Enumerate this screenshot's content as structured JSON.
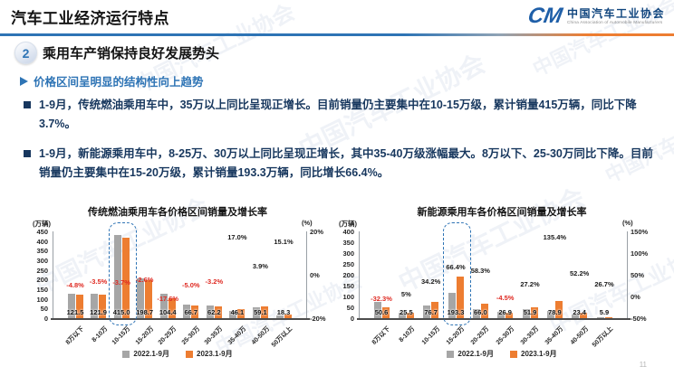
{
  "header": {
    "title": "汽车工业经济运行特点",
    "logo": {
      "mark": "CM",
      "org_name": "中国汽车工业协会",
      "org_subtitle": "China Association of Automobile Manufacturers"
    }
  },
  "section": {
    "number": "2",
    "title": "乘用车产销保持良好发展势头",
    "subtitle": "价格区间呈明显的结构性向上趋势"
  },
  "bullets": [
    {
      "text": "1-9月，传统燃油乘用车中，35万以上同比呈现正增长。目前销量仍主要集中在10-15万级，累计销量415万辆，同比下降3.7%。"
    },
    {
      "text": "1-9月，新能源乘用车中，8-25万、30万以上同比呈现正增长，其中35-40万级涨幅最大。8万以下、25-30万同比下降。目前销量仍主要集中在15-20万级，累计销量193.3万辆，同比增长66.4%。"
    }
  ],
  "icons": {
    "subtitle_arrow": "triangle-right",
    "bullet_marker": "square"
  },
  "colors": {
    "accent_blue": "#2E74B5",
    "navy_text": "#17375E",
    "bar_2022": "#A6A6A6",
    "bar_2023": "#ED7D31",
    "negative_red": "#DF2A22",
    "divider_orange": "#ED7D31"
  },
  "watermark_text": "中国汽车工业协会",
  "page_number": "11",
  "chart_data": [
    {
      "type": "bar",
      "title": "传统燃油乘用车各价格区间销量及增长率",
      "left_axis_unit": "(万辆)",
      "right_axis_unit": "(%)",
      "categories": [
        "8万以下",
        "8-10万",
        "10-15万",
        "15-20万",
        "20-25万",
        "25-30万",
        "30-35万",
        "35-40万",
        "40-50万",
        "50万以上"
      ],
      "series": [
        {
          "name": "2022.1-9月",
          "color": "#A6A6A6",
          "values": [
            127.6,
            126.3,
            430.9,
            204.0,
            126.7,
            70.2,
            64.3,
            39.4,
            56.9,
            15.9
          ]
        },
        {
          "name": "2023.1-9月",
          "color": "#ED7D31",
          "values": [
            121.5,
            121.9,
            415.0,
            198.7,
            104.4,
            66.7,
            62.2,
            46.1,
            59.1,
            18.3
          ]
        }
      ],
      "value_labels": [
        "121.5",
        "121.9",
        "415.0",
        "198.7",
        "104.4",
        "66.7",
        "62.2",
        "46.1",
        "59.1",
        "18.3"
      ],
      "growth": {
        "labels": [
          "-4.8%",
          "-3.5%",
          "-3.7%",
          "-2.6%",
          "-17.6%",
          "-5.0%",
          "-3.2%",
          "17.0%",
          "3.9%",
          "15.1%"
        ],
        "values": [
          -4.8,
          -3.5,
          -3.7,
          -2.6,
          -17.6,
          -5.0,
          -3.2,
          17.0,
          3.9,
          15.1
        ]
      },
      "ylim": [
        0,
        450
      ],
      "yticks": [
        450,
        400,
        350,
        300,
        250,
        200,
        150,
        100,
        50,
        0
      ],
      "y2lim": [
        -20,
        20
      ],
      "y2ticks": [
        {
          "label": "20%",
          "value": 20
        },
        {
          "label": "0%",
          "value": 0
        },
        {
          "label": "-20%",
          "value": -20
        }
      ],
      "grid": false,
      "legend_position": "bottom",
      "highlight_category": "10-15万",
      "highlight_index": 2
    },
    {
      "type": "bar",
      "title": "新能源乘用车各价格区间销量及增长率",
      "left_axis_unit": "(万辆)",
      "right_axis_unit": "(%)",
      "categories": [
        "8万以下",
        "8-10万",
        "10-15万",
        "15-20万",
        "20-25万",
        "25-30万",
        "30-35万",
        "35-40万",
        "40-50万",
        "50万以上"
      ],
      "series": [
        {
          "name": "2022.1-9月",
          "color": "#A6A6A6",
          "values": [
            74.7,
            24.3,
            57.2,
            116.2,
            41.7,
            28.2,
            40.8,
            33.5,
            15.4,
            4.7
          ]
        },
        {
          "name": "2023.1-9月",
          "color": "#ED7D31",
          "values": [
            50.6,
            25.5,
            76.7,
            193.3,
            66.0,
            26.9,
            51.9,
            78.9,
            23.4,
            5.9
          ]
        }
      ],
      "value_labels": [
        "50.6",
        "25.5",
        "76.7",
        "193.3",
        "66.0",
        "26.9",
        "51.9",
        "78.9",
        "23.4",
        "5.9"
      ],
      "growth": {
        "labels": [
          "-32.3%",
          "5%",
          "34.2%",
          "66.4%",
          "58.3%",
          "-4.5%",
          "27.2%",
          "135.4%",
          "52.2%",
          "26.7%"
        ],
        "values": [
          -32.3,
          5,
          34.2,
          66.4,
          58.3,
          -4.5,
          27.2,
          135.4,
          52.2,
          26.7
        ]
      },
      "ylim": [
        0,
        400
      ],
      "yticks": [
        400,
        350,
        300,
        250,
        200,
        150,
        100,
        50,
        0
      ],
      "y2lim": [
        -50,
        150
      ],
      "y2ticks": [
        {
          "label": "150%",
          "value": 150
        },
        {
          "label": "100%",
          "value": 100
        },
        {
          "label": "50%",
          "value": 50
        },
        {
          "label": "0%",
          "value": 0
        },
        {
          "label": "-50%",
          "value": -50
        }
      ],
      "grid": false,
      "legend_position": "bottom",
      "highlight_category": "15-20万",
      "highlight_index": 3
    }
  ]
}
